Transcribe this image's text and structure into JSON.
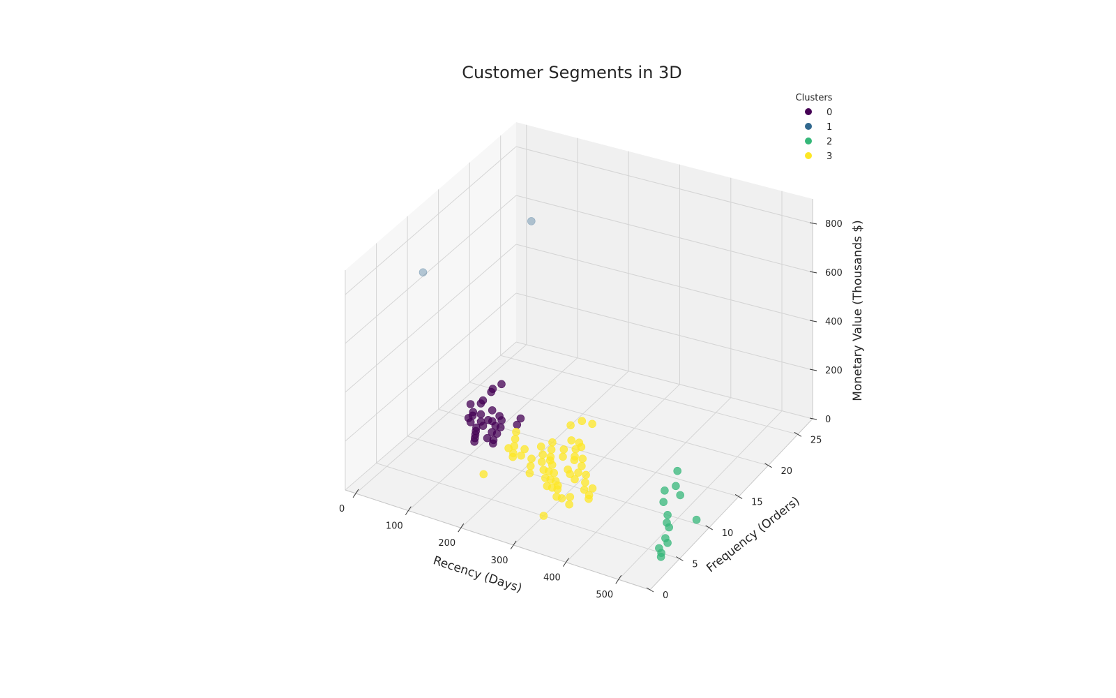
{
  "chart_data": {
    "type": "scatter",
    "title": "Customer Segments in 3D",
    "xlabel": "Recency (Days)",
    "ylabel": "Frequency (Orders)",
    "zlabel": "Monetary Value (Thousands $)",
    "xlim": [
      -20,
      560
    ],
    "ylim": [
      0,
      27.5
    ],
    "zlim": [
      0,
      900
    ],
    "xticks": [
      0,
      100,
      200,
      300,
      400,
      500
    ],
    "yticks": [
      0,
      5,
      10,
      15,
      20,
      25
    ],
    "zticks": [
      0,
      200,
      400,
      600,
      800
    ],
    "grid": true,
    "legend": {
      "title": "Clusters",
      "placement": "top-right"
    },
    "series": [
      {
        "name": "0",
        "color": "#440154",
        "points": [
          [
            25,
            20,
            0
          ],
          [
            30,
            21,
            0
          ],
          [
            28,
            19.5,
            0
          ],
          [
            30,
            18,
            0
          ],
          [
            32,
            17.5,
            0
          ],
          [
            18,
            17,
            0
          ],
          [
            35,
            16,
            0
          ],
          [
            40,
            15.5,
            0
          ],
          [
            38,
            15,
            0
          ],
          [
            48,
            14.5,
            0
          ],
          [
            60,
            17,
            0
          ],
          [
            62,
            15,
            0
          ],
          [
            50,
            16,
            0
          ],
          [
            65,
            14,
            0
          ],
          [
            70,
            13.5,
            0
          ],
          [
            75,
            13,
            0
          ],
          [
            80,
            12.5,
            0
          ],
          [
            85,
            12,
            0
          ],
          [
            70,
            15.5,
            0
          ],
          [
            72,
            14.5,
            0
          ],
          [
            78,
            15.5,
            0
          ],
          [
            90,
            15,
            0
          ],
          [
            95,
            14,
            0
          ],
          [
            100,
            15,
            0
          ],
          [
            105,
            14,
            0
          ],
          [
            98,
            13,
            0
          ],
          [
            110,
            13,
            0
          ],
          [
            115,
            12.5,
            0
          ],
          [
            120,
            16,
            0
          ],
          [
            115,
            17,
            0
          ],
          [
            80,
            16.5,
            0
          ],
          [
            90,
            16,
            0
          ]
        ]
      },
      {
        "name": "1",
        "color": "#31688e",
        "points": [
          [
            100,
            20,
            730
          ],
          [
            10,
            10,
            690
          ]
        ]
      },
      {
        "name": "2",
        "color": "#35b779",
        "points": [
          [
            430,
            16,
            0
          ],
          [
            440,
            13,
            0
          ],
          [
            450,
            14,
            0
          ],
          [
            455,
            11.5,
            0
          ],
          [
            470,
            13,
            0
          ],
          [
            480,
            10,
            0
          ],
          [
            490,
            9,
            0
          ],
          [
            500,
            8.5,
            0
          ],
          [
            510,
            7,
            0
          ],
          [
            520,
            6.5,
            0
          ],
          [
            515,
            5.5,
            0
          ],
          [
            525,
            5,
            0
          ],
          [
            530,
            4.5,
            0
          ],
          [
            530,
            10.5,
            0
          ]
        ]
      },
      {
        "name": "3",
        "color": "#fde725",
        "points": [
          [
            130,
            15,
            0
          ],
          [
            140,
            14,
            0
          ],
          [
            150,
            13,
            0
          ],
          [
            145,
            12.5,
            0
          ],
          [
            160,
            12,
            0
          ],
          [
            165,
            11.5,
            0
          ],
          [
            170,
            13,
            0
          ],
          [
            175,
            12,
            0
          ],
          [
            190,
            14,
            0
          ],
          [
            200,
            15,
            0
          ],
          [
            205,
            13,
            0
          ],
          [
            210,
            14,
            0
          ],
          [
            215,
            12,
            0
          ],
          [
            220,
            13,
            0
          ],
          [
            225,
            12.5,
            0
          ],
          [
            230,
            11,
            0
          ],
          [
            235,
            12,
            0
          ],
          [
            240,
            11,
            0
          ],
          [
            245,
            10,
            0
          ],
          [
            250,
            11,
            0
          ],
          [
            255,
            10,
            0
          ],
          [
            260,
            9,
            0
          ],
          [
            265,
            10,
            0
          ],
          [
            270,
            9,
            0
          ],
          [
            275,
            9.5,
            0
          ],
          [
            280,
            9,
            0
          ],
          [
            290,
            8,
            0
          ],
          [
            300,
            8,
            0
          ],
          [
            310,
            8.5,
            0
          ],
          [
            320,
            7.5,
            0
          ],
          [
            200,
            18,
            0
          ],
          [
            210,
            19,
            0
          ],
          [
            230,
            19,
            0
          ],
          [
            225,
            16,
            0
          ],
          [
            240,
            16,
            0
          ],
          [
            245,
            15,
            0
          ],
          [
            250,
            15.5,
            0
          ],
          [
            255,
            14,
            0
          ],
          [
            260,
            13.5,
            0
          ],
          [
            270,
            14,
            0
          ],
          [
            280,
            13,
            0
          ],
          [
            285,
            12,
            0
          ],
          [
            290,
            11,
            0
          ],
          [
            300,
            12,
            0
          ],
          [
            310,
            11,
            0
          ],
          [
            320,
            10,
            0
          ],
          [
            330,
            10.5,
            0
          ],
          [
            335,
            9.5,
            0
          ],
          [
            340,
            9,
            0
          ],
          [
            265,
            12,
            0
          ],
          [
            275,
            11.5,
            0
          ],
          [
            150,
            8,
            0
          ],
          [
            300,
            5,
            0
          ],
          [
            215,
            10,
            0
          ],
          [
            228,
            14.5,
            0
          ],
          [
            238,
            13.5,
            0
          ],
          [
            195,
            12,
            0
          ],
          [
            205,
            11,
            0
          ]
        ]
      }
    ]
  }
}
